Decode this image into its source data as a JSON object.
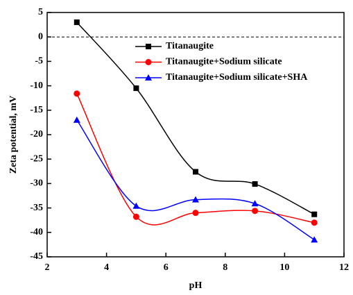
{
  "chart_data": {
    "type": "line",
    "x_label": "pH",
    "y_label": "Zeta potential, mV",
    "x": [
      3,
      5,
      7,
      9,
      11
    ],
    "series": [
      {
        "name": "Titanaugite",
        "color": "#000000",
        "marker": "square",
        "values": [
          3,
          -10.5,
          -27.6,
          -30.1,
          -36.3
        ]
      },
      {
        "name": "Titanaugite+Sodium silicate",
        "color": "#ff0000",
        "marker": "circle",
        "values": [
          -11.6,
          -36.8,
          -36,
          -35.6,
          -38
        ]
      },
      {
        "name": "Titanaugite+Sodium silicate+SHA",
        "color": "#0000ff",
        "marker": "triangle",
        "values": [
          -17,
          -34.6,
          -33.3,
          -34.1,
          -41.5
        ]
      }
    ],
    "xlim": [
      2,
      12
    ],
    "xticks": [
      2,
      4,
      6,
      8,
      10,
      12
    ],
    "ylim": [
      -45,
      5
    ],
    "yticks": [
      -45,
      -40,
      -35,
      -30,
      -25,
      -20,
      -15,
      -10,
      -5,
      0,
      5
    ],
    "reference_line": 0,
    "smooth": true,
    "legend": "top-right"
  }
}
